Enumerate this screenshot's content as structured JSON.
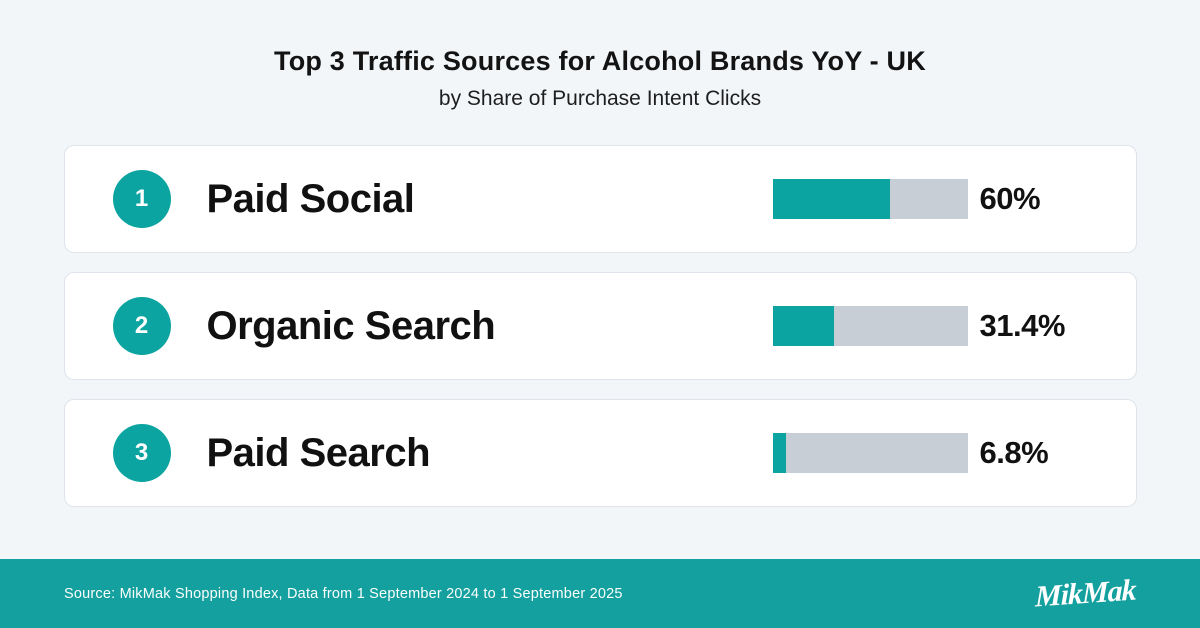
{
  "header": {
    "title": "Top 3 Traffic Sources for Alcohol Brands YoY - UK",
    "subtitle": "by Share of Purchase Intent Clicks"
  },
  "chart_data": {
    "type": "bar",
    "orientation": "horizontal",
    "title": "Top 3 Traffic Sources for Alcohol Brands YoY - UK",
    "subtitle": "by Share of Purchase Intent Clicks",
    "categories": [
      "Paid Social",
      "Organic Search",
      "Paid Search"
    ],
    "values": [
      60,
      31.4,
      6.8
    ],
    "value_labels": [
      "60%",
      "31.4%",
      "6.8%"
    ],
    "unit": "%",
    "xlim": [
      0,
      100
    ],
    "grid": false,
    "legend": false
  },
  "rows": [
    {
      "rank": "1",
      "label": "Paid Social",
      "value": 60,
      "value_label": "60%"
    },
    {
      "rank": "2",
      "label": "Organic Search",
      "value": 31.4,
      "value_label": "31.4%"
    },
    {
      "rank": "3",
      "label": "Paid Search",
      "value": 6.8,
      "value_label": "6.8%"
    }
  ],
  "footer": {
    "source": "Source: MikMak Shopping Index, Data from 1 September 2024 to 1 September 2025",
    "logo_text": "MikMak"
  },
  "colors": {
    "accent_teal": "#0CA4A1",
    "bar_track_gray": "#C7CED6",
    "footer_background": "#14A09E",
    "page_background": "#F2F6F9",
    "card_background": "#FFFFFF",
    "card_border": "#DEE4EA",
    "text_dark": "#131313",
    "footer_text": "#FFFFFF"
  }
}
